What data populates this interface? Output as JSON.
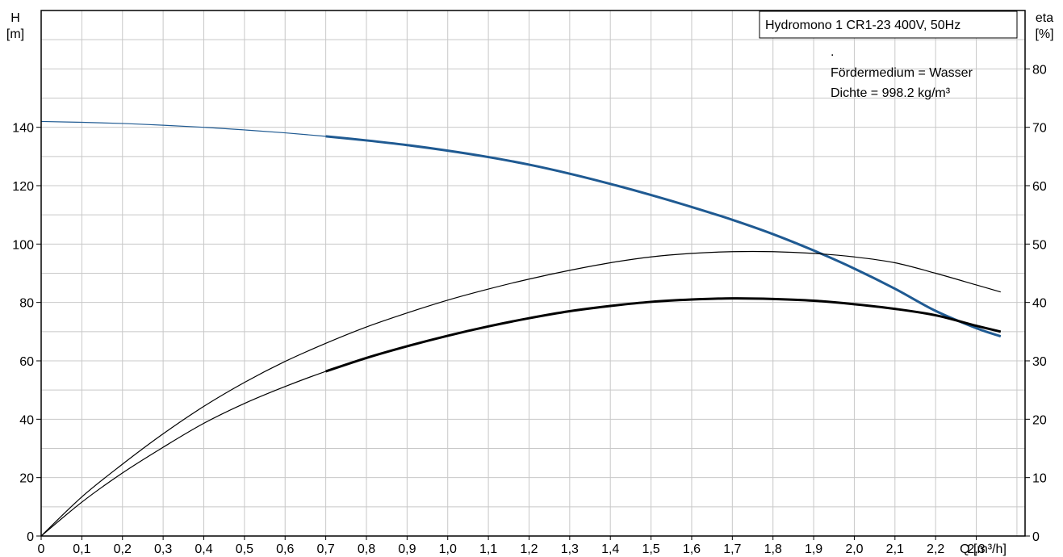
{
  "chart_data": {
    "type": "line",
    "title": "Hydromono 1 CR1-23 400V, 50Hz",
    "annotations": [
      ".",
      "Fördermedium = Wasser",
      "Dichte = 998.2 kg/m³"
    ],
    "x_axis": {
      "unit_label": "Q [m³/h]",
      "range": [
        0,
        2.42
      ],
      "ticks": [
        0,
        0.1,
        0.2,
        0.3,
        0.4,
        0.5,
        0.6,
        0.7,
        0.8,
        0.9,
        1.0,
        1.1,
        1.2,
        1.3,
        1.4,
        1.5,
        1.6,
        1.7,
        1.8,
        1.9,
        2.0,
        2.1,
        2.2,
        2.3
      ],
      "tick_labels": [
        "0",
        "0,1",
        "0,2",
        "0,3",
        "0,4",
        "0,5",
        "0,6",
        "0,7",
        "0,8",
        "0,9",
        "1,0",
        "1,1",
        "1,2",
        "1,3",
        "1,4",
        "1,5",
        "1,6",
        "1,7",
        "1,8",
        "1,9",
        "2,0",
        "2,1",
        "2,2",
        "2,3"
      ]
    },
    "y_left": {
      "label_line1": "H",
      "label_line2": "[m]",
      "range": [
        0,
        180
      ],
      "ticks": [
        0,
        20,
        40,
        60,
        80,
        100,
        120,
        140
      ]
    },
    "y_right": {
      "label_line1": "eta",
      "label_line2": "[%]",
      "range": [
        0,
        90
      ],
      "ticks": [
        0,
        10,
        20,
        30,
        40,
        50,
        60,
        70,
        80
      ]
    },
    "grid": true,
    "series": [
      {
        "axis": "left",
        "color": "#1f5a92",
        "operating_range": [
          0.7,
          2.36
        ],
        "x": [
          0,
          0.1,
          0.2,
          0.3,
          0.4,
          0.5,
          0.6,
          0.7,
          0.8,
          0.9,
          1.0,
          1.1,
          1.2,
          1.3,
          1.4,
          1.5,
          1.6,
          1.7,
          1.8,
          1.9,
          2.0,
          2.1,
          2.2,
          2.3,
          2.36
        ],
        "y": [
          142,
          141.7,
          141.3,
          140.7,
          140,
          139.1,
          138.1,
          136.9,
          135.5,
          133.9,
          132,
          129.8,
          127.2,
          124.1,
          120.6,
          116.8,
          112.7,
          108.3,
          103.4,
          97.8,
          91.6,
          84.7,
          77.1,
          71.2,
          68.4
        ]
      },
      {
        "axis": "right",
        "color": "#000000",
        "operating_range": null,
        "x": [
          0,
          0.1,
          0.2,
          0.3,
          0.4,
          0.5,
          0.6,
          0.7,
          0.8,
          0.9,
          1.0,
          1.1,
          1.2,
          1.3,
          1.4,
          1.5,
          1.6,
          1.7,
          1.8,
          1.9,
          2.0,
          2.1,
          2.2,
          2.3,
          2.36
        ],
        "y": [
          0,
          6.7,
          12.3,
          17.5,
          22.2,
          26.3,
          29.9,
          33.0,
          35.8,
          38.2,
          40.4,
          42.3,
          44.0,
          45.5,
          46.8,
          47.8,
          48.4,
          48.7,
          48.7,
          48.4,
          47.8,
          46.8,
          45.0,
          43.0,
          41.8
        ]
      },
      {
        "axis": "right",
        "color": "#000000",
        "operating_range": [
          0.7,
          2.36
        ],
        "x": [
          0,
          0.1,
          0.2,
          0.3,
          0.4,
          0.5,
          0.6,
          0.7,
          0.8,
          0.9,
          1.0,
          1.1,
          1.2,
          1.3,
          1.4,
          1.5,
          1.6,
          1.7,
          1.8,
          1.9,
          2.0,
          2.1,
          2.2,
          2.3,
          2.36
        ],
        "y": [
          0,
          5.8,
          10.8,
          15.2,
          19.3,
          22.7,
          25.6,
          28.2,
          30.5,
          32.5,
          34.3,
          35.9,
          37.3,
          38.5,
          39.4,
          40.1,
          40.5,
          40.7,
          40.6,
          40.3,
          39.7,
          38.9,
          37.8,
          36.0,
          35.0
        ]
      }
    ]
  }
}
